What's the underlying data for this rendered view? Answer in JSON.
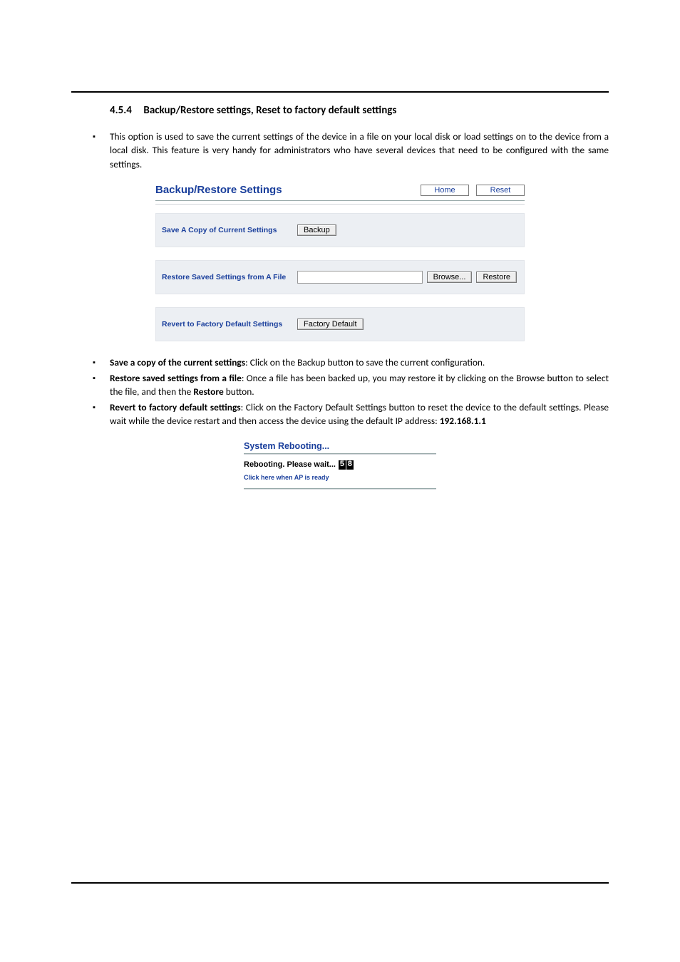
{
  "section": {
    "number": "4.5.4",
    "title": "Backup/Restore settings, Reset to factory default settings"
  },
  "intro_bullet": "This option is used to save the current settings of the device in a file on your local disk or load settings on to the device from a local disk. This feature is very handy for administrators who have several devices that need to be configured with the same settings.",
  "panel": {
    "title": "Backup/Restore Settings",
    "home_btn": "Home",
    "reset_btn": "Reset",
    "rows": {
      "save": {
        "label": "Save A Copy of Current Settings",
        "button": "Backup"
      },
      "restore": {
        "label": "Restore Saved Settings from A File",
        "browse_btn": "Browse...",
        "restore_btn": "Restore",
        "file_value": ""
      },
      "revert": {
        "label": "Revert to Factory Default Settings",
        "button": "Factory Default"
      }
    }
  },
  "detail_bullets": {
    "b1_bold": "Save a copy of the current settings",
    "b1_rest": ": Click on the Backup button to save the current configuration.",
    "b2_bold": "Restore saved settings from a file",
    "b2_rest_a": ": Once a file has been backed up, you may restore it by clicking on the Browse button to select the file, and then the ",
    "b2_rest_bold": "Restore",
    "b2_rest_b": " button.",
    "b3_bold": "Revert to factory default settings",
    "b3_rest_a": ": Click on the Factory Default Settings button to reset the device to the default settings. Please wait while the device restart and then access the device using the default IP address: ",
    "b3_ip": "192.168.1.1"
  },
  "reboot": {
    "title": "System Rebooting...",
    "line": "Rebooting. Please wait...",
    "count_d1": "5",
    "count_d2": "8",
    "link": "Click here when AP is ready"
  },
  "colors": {
    "link_blue": "#1a3f9c",
    "row_bg": "#eceff3"
  }
}
